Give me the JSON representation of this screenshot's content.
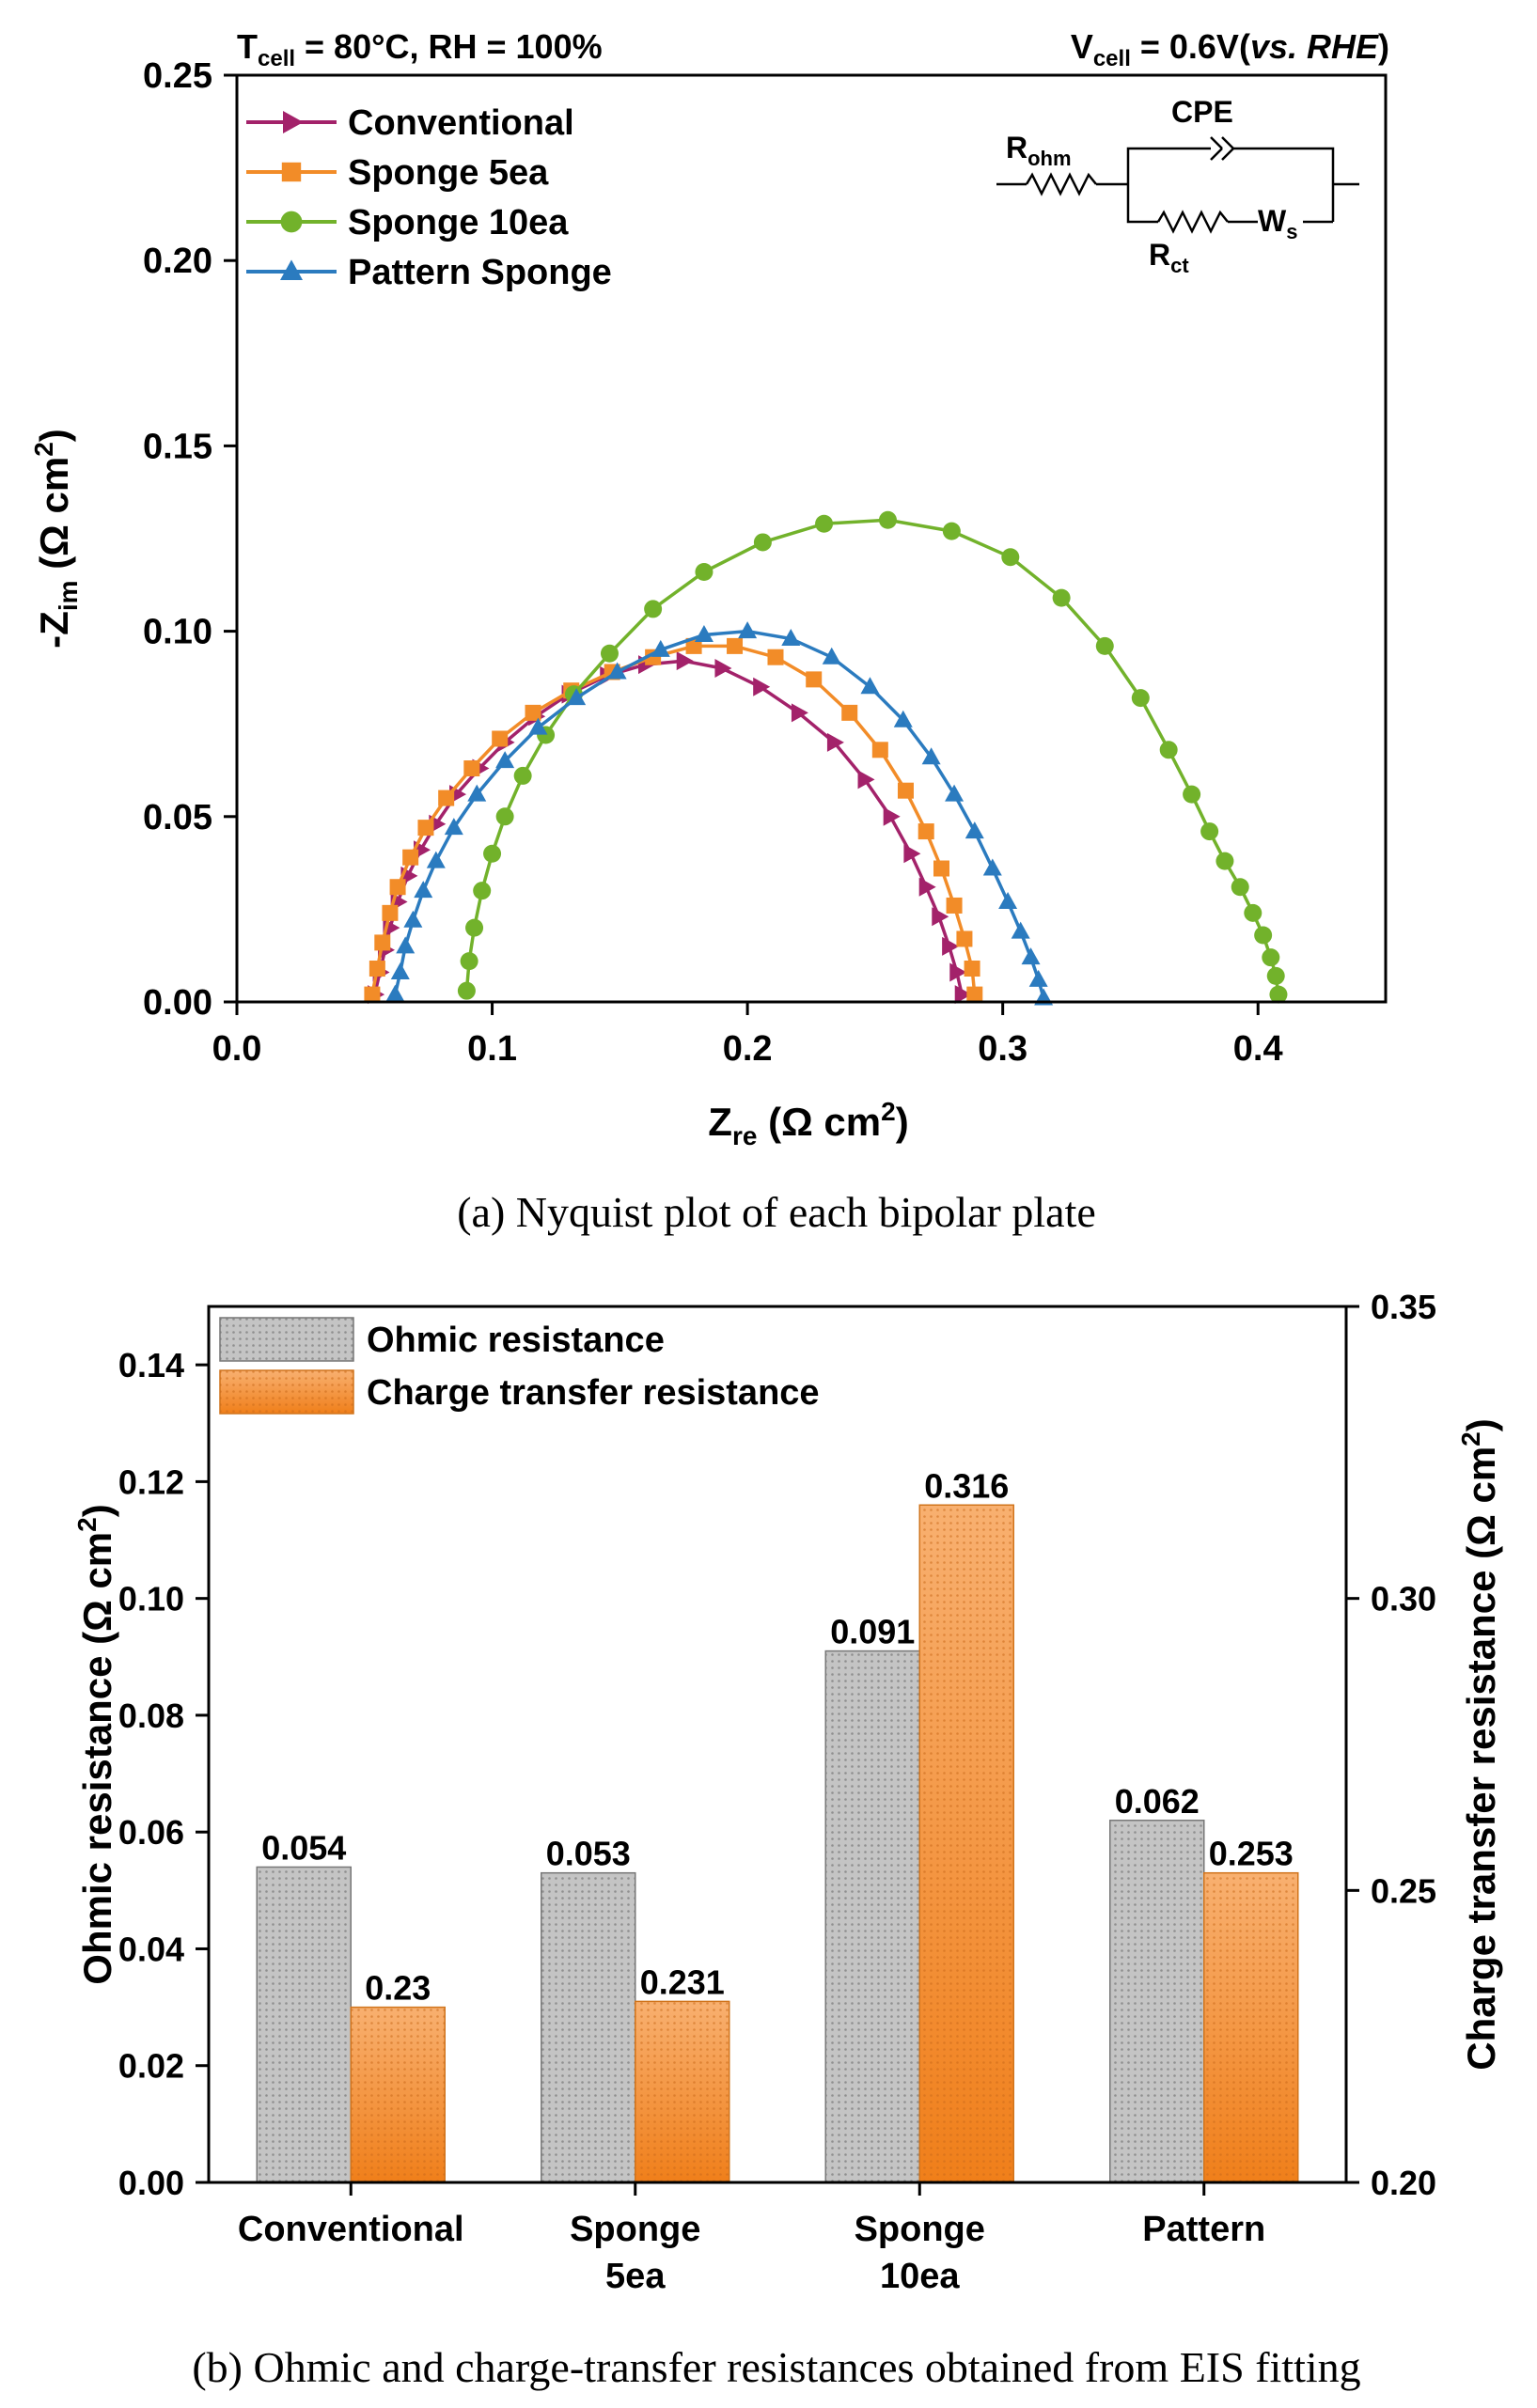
{
  "panel_a": {
    "caption": "(a) Nyquist plot of each bipolar plate",
    "condition_left": {
      "main": "T",
      "sub": "cell",
      "rest": " = 80°C, RH = 100%"
    },
    "condition_right": {
      "main": "V",
      "sub": "cell",
      "rest": " = 0.6V(",
      "italic": "vs. RHE",
      "close": ")"
    },
    "circuit": {
      "r_ohm": "R",
      "r_ohm_sub": "ohm",
      "cpe": "CPE",
      "r_ct": "R",
      "r_ct_sub": "ct",
      "ws": "W",
      "ws_sub": "s"
    }
  },
  "panel_b": {
    "caption": "(b) Ohmic and charge-transfer resistances obtained from EIS fitting"
  },
  "colors": {
    "conventional": "#a3226a",
    "sponge_5ea": "#f28c28",
    "sponge_10ea": "#72b22b",
    "pattern_sponge": "#2b7bbf",
    "ohmic_bar": "#b8b8b8",
    "charge_bar": "#f59a3d"
  },
  "chart_data": [
    {
      "type": "line",
      "xlabel": {
        "main": "Z",
        "sub": "re",
        "unit": " (Ω cm",
        "sup": "2",
        "close": ")"
      },
      "ylabel": {
        "main": "-Z",
        "sub": "im",
        "unit": " (Ω cm",
        "sup": "2",
        "close": ")"
      },
      "xlim": [
        0.0,
        0.45
      ],
      "ylim": [
        0.0,
        0.25
      ],
      "x_ticks": [
        "0.0",
        "0.1",
        "0.2",
        "0.3",
        "0.4"
      ],
      "y_ticks": [
        "0.00",
        "0.05",
        "0.10",
        "0.15",
        "0.20",
        "0.25"
      ],
      "legend_position": "top-left",
      "series": [
        {
          "name": "Conventional",
          "marker": "triangle-right",
          "color": "#a3226a",
          "x": [
            0.054,
            0.056,
            0.058,
            0.06,
            0.063,
            0.067,
            0.072,
            0.078,
            0.086,
            0.095,
            0.105,
            0.117,
            0.13,
            0.145,
            0.16,
            0.175,
            0.19,
            0.205,
            0.22,
            0.234,
            0.246,
            0.256,
            0.264,
            0.27,
            0.275,
            0.279,
            0.282,
            0.284
          ],
          "y": [
            0.002,
            0.008,
            0.014,
            0.02,
            0.027,
            0.034,
            0.041,
            0.048,
            0.056,
            0.063,
            0.07,
            0.077,
            0.083,
            0.088,
            0.091,
            0.092,
            0.09,
            0.085,
            0.078,
            0.07,
            0.06,
            0.05,
            0.04,
            0.031,
            0.023,
            0.015,
            0.008,
            0.002
          ]
        },
        {
          "name": "Sponge 5ea",
          "marker": "square",
          "color": "#f28c28",
          "x": [
            0.053,
            0.055,
            0.057,
            0.06,
            0.063,
            0.068,
            0.074,
            0.082,
            0.092,
            0.103,
            0.116,
            0.131,
            0.147,
            0.163,
            0.179,
            0.195,
            0.211,
            0.226,
            0.24,
            0.252,
            0.262,
            0.27,
            0.276,
            0.281,
            0.285,
            0.288,
            0.289
          ],
          "y": [
            0.002,
            0.009,
            0.016,
            0.024,
            0.031,
            0.039,
            0.047,
            0.055,
            0.063,
            0.071,
            0.078,
            0.084,
            0.089,
            0.093,
            0.096,
            0.096,
            0.093,
            0.087,
            0.078,
            0.068,
            0.057,
            0.046,
            0.036,
            0.026,
            0.017,
            0.009,
            0.002
          ]
        },
        {
          "name": "Sponge 10ea",
          "marker": "circle",
          "color": "#72b22b",
          "x": [
            0.09,
            0.091,
            0.093,
            0.096,
            0.1,
            0.105,
            0.112,
            0.121,
            0.132,
            0.146,
            0.163,
            0.183,
            0.206,
            0.23,
            0.255,
            0.28,
            0.303,
            0.323,
            0.34,
            0.354,
            0.365,
            0.374,
            0.381,
            0.387,
            0.393,
            0.398,
            0.402,
            0.405,
            0.407,
            0.408
          ],
          "y": [
            0.003,
            0.011,
            0.02,
            0.03,
            0.04,
            0.05,
            0.061,
            0.072,
            0.083,
            0.094,
            0.106,
            0.116,
            0.124,
            0.129,
            0.13,
            0.127,
            0.12,
            0.109,
            0.096,
            0.082,
            0.068,
            0.056,
            0.046,
            0.038,
            0.031,
            0.024,
            0.018,
            0.012,
            0.007,
            0.002
          ]
        },
        {
          "name": "Pattern Sponge",
          "marker": "triangle-up",
          "color": "#2b7bbf",
          "x": [
            0.062,
            0.064,
            0.066,
            0.069,
            0.073,
            0.078,
            0.085,
            0.094,
            0.105,
            0.118,
            0.133,
            0.149,
            0.166,
            0.183,
            0.2,
            0.217,
            0.233,
            0.248,
            0.261,
            0.272,
            0.281,
            0.289,
            0.296,
            0.302,
            0.307,
            0.311,
            0.314,
            0.316
          ],
          "y": [
            0.002,
            0.008,
            0.015,
            0.022,
            0.03,
            0.038,
            0.047,
            0.056,
            0.065,
            0.074,
            0.082,
            0.089,
            0.095,
            0.099,
            0.1,
            0.098,
            0.093,
            0.085,
            0.076,
            0.066,
            0.056,
            0.046,
            0.036,
            0.027,
            0.019,
            0.012,
            0.006,
            0.001
          ]
        }
      ]
    },
    {
      "type": "bar",
      "categories": [
        [
          "Conventional"
        ],
        [
          "Sponge",
          "5ea"
        ],
        [
          "Sponge",
          "10ea"
        ],
        [
          "Pattern"
        ]
      ],
      "ylabel_left": {
        "main": "Ohmic resistance (Ω cm",
        "sup": "2",
        "close": ")"
      },
      "ylabel_right": {
        "main": "Charge transfer resistance (Ω cm",
        "sup": "2",
        "close": ")"
      },
      "ylim_left": [
        0.0,
        0.15
      ],
      "ylim_right": [
        0.2,
        0.35
      ],
      "y_ticks_left": [
        "0.00",
        "0.02",
        "0.04",
        "0.06",
        "0.08",
        "0.10",
        "0.12",
        "0.14"
      ],
      "y_ticks_right": [
        "0.20",
        "0.25",
        "0.30",
        "0.35"
      ],
      "legend_position": "top-left",
      "series": [
        {
          "name": "Ohmic resistance",
          "axis": "left",
          "color": "#b8b8b8",
          "values": [
            0.054,
            0.053,
            0.091,
            0.062
          ],
          "labels": [
            "0.054",
            "0.053",
            "0.091",
            "0.062"
          ]
        },
        {
          "name": "Charge transfer resistance",
          "axis": "right",
          "color": "#f59a3d",
          "values": [
            0.23,
            0.231,
            0.316,
            0.253
          ],
          "labels": [
            "0.23",
            "0.231",
            "0.316",
            "0.253"
          ]
        }
      ]
    }
  ]
}
